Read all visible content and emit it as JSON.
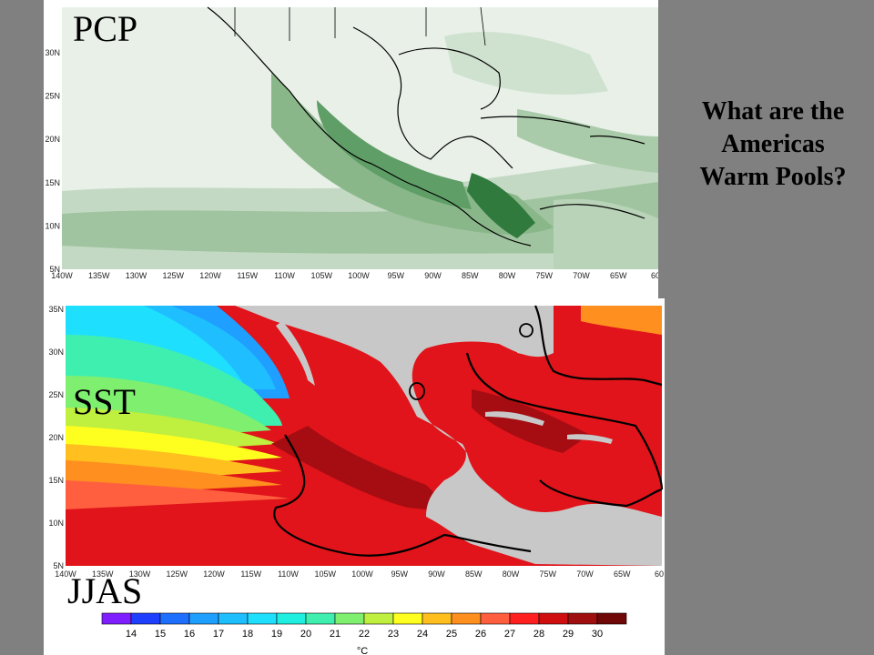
{
  "slide": {
    "question_lines": [
      "What are the",
      "Americas",
      "Warm Pools?"
    ],
    "background_color": "#808080"
  },
  "pcp_map": {
    "label": "PCP",
    "lon_ticks": [
      "140W",
      "135W",
      "130W",
      "125W",
      "120W",
      "115W",
      "110W",
      "105W",
      "100W",
      "95W",
      "90W",
      "85W",
      "80W",
      "75W",
      "70W",
      "65W",
      "60"
    ],
    "lat_ticks": [
      "30N",
      "25N",
      "20N",
      "15N",
      "10N",
      "5N"
    ],
    "colors": {
      "land_light": "#e6efe6",
      "low": "#c7dcc7",
      "mid": "#8fbb8f",
      "high": "#3f8a4a",
      "peak": "#1f6b2e"
    }
  },
  "sst_map": {
    "label": "SST",
    "season_label": "JJAS",
    "lon_ticks": [
      "140W",
      "135W",
      "130W",
      "125W",
      "120W",
      "115W",
      "110W",
      "105W",
      "100W",
      "95W",
      "90W",
      "85W",
      "80W",
      "75W",
      "70W",
      "65W",
      "60"
    ],
    "lat_ticks": [
      "35N",
      "30N",
      "25N",
      "20N",
      "15N",
      "10N",
      "5N"
    ],
    "land_color": "#c8c8c8",
    "warm_pool_color": "#e0141a",
    "hot_core_color": "#a60d12"
  },
  "colorbar": {
    "unit": "°C",
    "labels": [
      "14",
      "15",
      "16",
      "17",
      "18",
      "19",
      "20",
      "21",
      "22",
      "23",
      "24",
      "25",
      "26",
      "27",
      "28",
      "29",
      "30"
    ],
    "colors": [
      "#7f1fff",
      "#1f3fff",
      "#1f6fff",
      "#1f9fff",
      "#1fbfff",
      "#1fdfff",
      "#1fefdf",
      "#3fefaf",
      "#7fef6f",
      "#bfef3f",
      "#ffff1f",
      "#ffbf1f",
      "#ff8f1f",
      "#ff5f3f",
      "#ff1f1f",
      "#cf0f0f",
      "#9f0f0f",
      "#6f0707"
    ]
  }
}
